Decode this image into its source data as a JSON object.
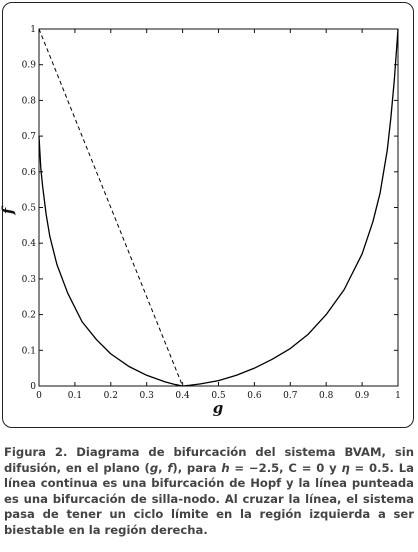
{
  "chart_data": {
    "type": "line",
    "xlabel": "g",
    "ylabel": "f",
    "xlim": [
      0,
      1
    ],
    "ylim": [
      0,
      1
    ],
    "xticks": [
      "0",
      "0.1",
      "0.2",
      "0.3",
      "0.4",
      "0.5",
      "0.6",
      "0.7",
      "0.8",
      "0.9",
      "1"
    ],
    "yticks": [
      "0",
      "0.1",
      "0.2",
      "0.3",
      "0.4",
      "0.5",
      "0.6",
      "0.7",
      "0.8",
      "0.9",
      "1"
    ],
    "series": [
      {
        "style": "solid",
        "x": [
          0,
          0.005,
          0.01,
          0.02,
          0.03,
          0.05,
          0.08,
          0.12,
          0.16,
          0.2,
          0.25,
          0.3,
          0.35,
          0.38,
          0.4,
          0.42,
          0.45,
          0.5,
          0.55,
          0.6,
          0.65,
          0.7,
          0.75,
          0.8,
          0.85,
          0.9,
          0.93,
          0.95,
          0.97,
          0.98,
          0.99,
          1.0
        ],
        "y": [
          0.7,
          0.61,
          0.56,
          0.48,
          0.42,
          0.34,
          0.26,
          0.18,
          0.13,
          0.09,
          0.055,
          0.03,
          0.012,
          0.004,
          0.0,
          0.002,
          0.006,
          0.015,
          0.03,
          0.05,
          0.075,
          0.105,
          0.145,
          0.2,
          0.27,
          0.37,
          0.46,
          0.54,
          0.66,
          0.75,
          0.86,
          1.0
        ]
      },
      {
        "style": "dashed",
        "x": [
          0,
          0.4
        ],
        "y": [
          1.0,
          0.0
        ]
      }
    ]
  },
  "caption": {
    "label": "Figura 2.",
    "parts": [
      {
        "t": " Diagrama de bifurcación del sistema BVAM, sin difusión, en el plano ("
      },
      {
        "t": "g",
        "i": true
      },
      {
        "t": ", "
      },
      {
        "t": "f",
        "i": true
      },
      {
        "t": "), para "
      },
      {
        "t": "h",
        "i": true
      },
      {
        "t": " = −2.5, C = 0 y "
      },
      {
        "t": "η",
        "i": true
      },
      {
        "t": " = 0.5. La línea continua es una bifurcación de Hopf y la línea punteada es una bifurcación de silla-nodo. Al cruzar la línea, el sistema pasa de tener un ciclo límite en la región izquierda a ser biestable en la región derecha."
      }
    ]
  }
}
